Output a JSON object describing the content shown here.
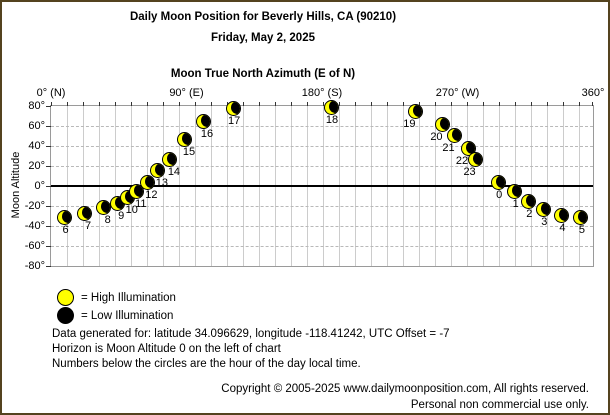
{
  "header": {
    "title": "Daily Moon Position for Beverly Hills, CA (90210)",
    "subtitle": "Friday, May 2, 2025"
  },
  "chart_data": {
    "type": "scatter",
    "title": "Moon True North Azimuth (E of N)",
    "xlabel": "Moon True North Azimuth (E of N)",
    "ylabel": "Moon Altitude",
    "xlim": [
      0,
      360
    ],
    "ylim": [
      -80,
      80
    ],
    "grid": true,
    "marker": "moon-phase-circle",
    "marker_colors": {
      "illuminated": "#ffff00",
      "dark": "#000000"
    },
    "x_ticks": [
      {
        "value": 0,
        "label": "0° (N)"
      },
      {
        "value": 90,
        "label": "90° (E)"
      },
      {
        "value": 180,
        "label": "180° (S)"
      },
      {
        "value": 270,
        "label": "270° (W)"
      },
      {
        "value": 360,
        "label": "360°"
      }
    ],
    "y_ticks": [
      {
        "value": 80,
        "label": "80°"
      },
      {
        "value": 60,
        "label": "60°"
      },
      {
        "value": 40,
        "label": "40°"
      },
      {
        "value": 20,
        "label": "20°"
      },
      {
        "value": 0,
        "label": "0°"
      },
      {
        "value": -20,
        "label": "-20°"
      },
      {
        "value": -40,
        "label": "-40°"
      },
      {
        "value": -60,
        "label": "-60°"
      },
      {
        "value": -80,
        "label": "-80°"
      }
    ],
    "points": [
      {
        "hour": 0,
        "azimuth": 297,
        "altitude": 4
      },
      {
        "hour": 1,
        "azimuth": 308,
        "altitude": -5
      },
      {
        "hour": 2,
        "azimuth": 317,
        "altitude": -15
      },
      {
        "hour": 3,
        "azimuth": 327,
        "altitude": -23
      },
      {
        "hour": 4,
        "azimuth": 339,
        "altitude": -29
      },
      {
        "hour": 5,
        "azimuth": 352,
        "altitude": -31
      },
      {
        "hour": 6,
        "azimuth": 9,
        "altitude": -31
      },
      {
        "hour": 7,
        "azimuth": 22,
        "altitude": -27
      },
      {
        "hour": 8,
        "azimuth": 35,
        "altitude": -21
      },
      {
        "hour": 9,
        "azimuth": 44,
        "altitude": -17
      },
      {
        "hour": 10,
        "azimuth": 51,
        "altitude": -11
      },
      {
        "hour": 11,
        "azimuth": 57,
        "altitude": -5
      },
      {
        "hour": 12,
        "azimuth": 64,
        "altitude": 4
      },
      {
        "hour": 13,
        "azimuth": 71,
        "altitude": 16
      },
      {
        "hour": 14,
        "azimuth": 79,
        "altitude": 27
      },
      {
        "hour": 15,
        "azimuth": 89,
        "altitude": 47
      },
      {
        "hour": 16,
        "azimuth": 101,
        "altitude": 65
      },
      {
        "hour": 17,
        "azimuth": 121,
        "altitude": 78
      },
      {
        "hour": 18,
        "azimuth": 186,
        "altitude": 79
      },
      {
        "hour": 19,
        "azimuth": 242,
        "altitude": 75
      },
      {
        "hour": 20,
        "azimuth": 260,
        "altitude": 62
      },
      {
        "hour": 21,
        "azimuth": 268,
        "altitude": 51
      },
      {
        "hour": 22,
        "azimuth": 277,
        "altitude": 38
      },
      {
        "hour": 23,
        "azimuth": 282,
        "altitude": 27
      }
    ]
  },
  "legend": {
    "high": {
      "label": "= High Illumination",
      "color": "#ffff00"
    },
    "low": {
      "label": "= Low Illumination",
      "color": "#000000"
    }
  },
  "notes": {
    "line1": "Data generated for: latitude 34.096629, longitude -118.41242, UTC Offset = -7",
    "line2": "Horizon is Moon Altitude 0 on the left of chart",
    "line3": "Numbers below the circles are the hour of the day local time."
  },
  "footer": {
    "line1": "Copyright © 2005-2025 www.dailymoonposition.com, All rights reserved.",
    "line2": "Personal non commercial use only."
  }
}
